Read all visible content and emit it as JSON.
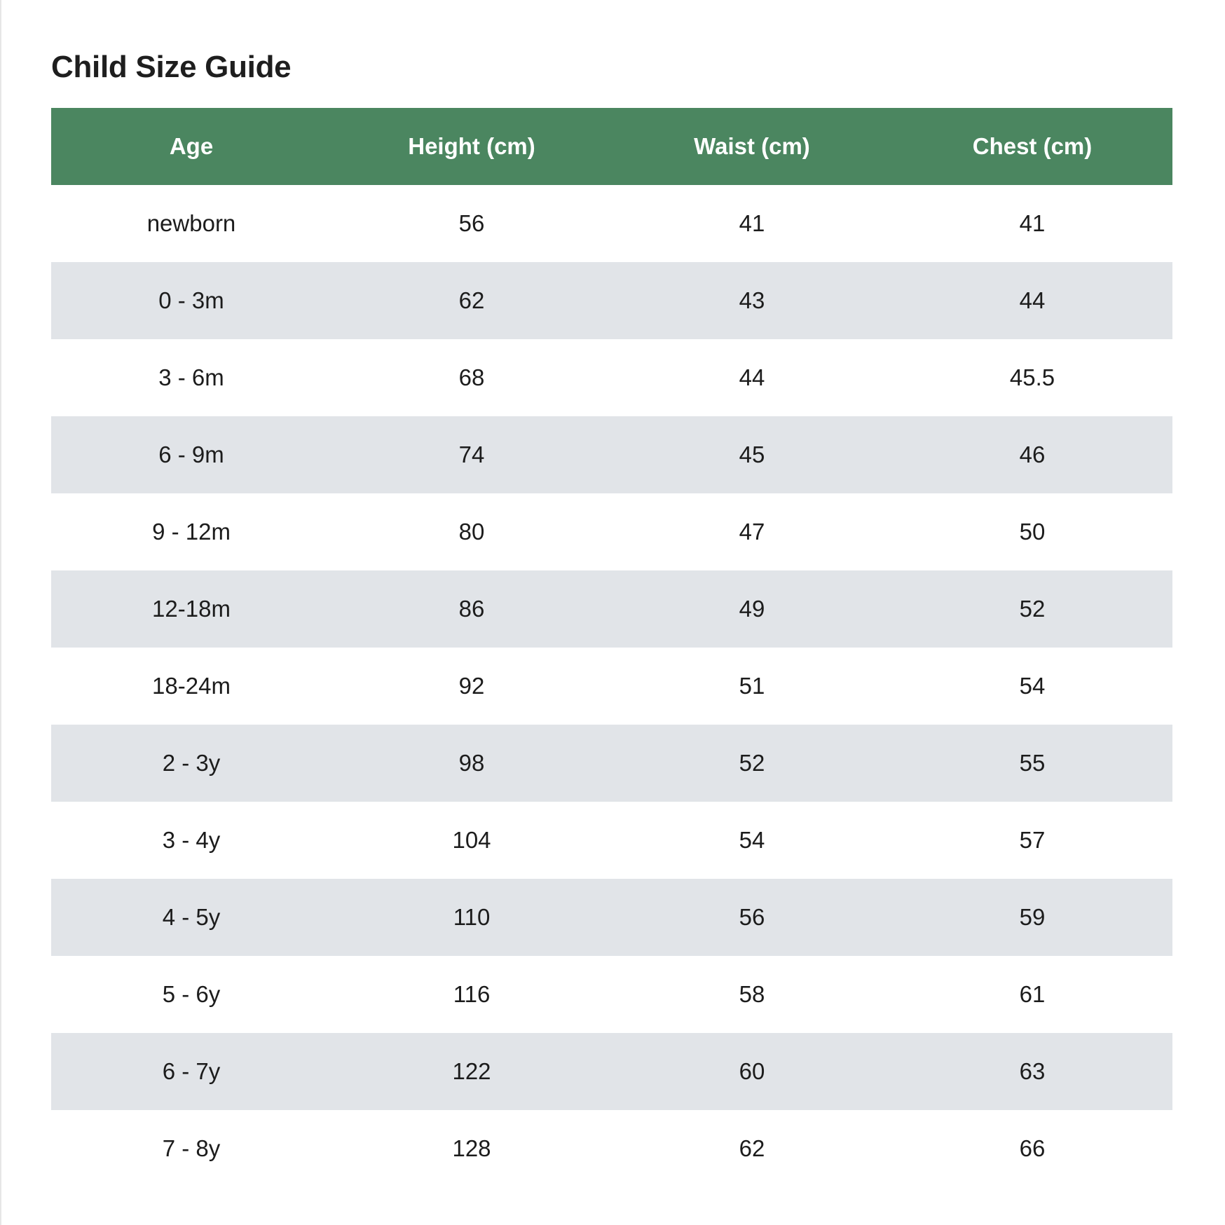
{
  "page": {
    "title": "Child Size Guide"
  },
  "colors": {
    "header_background": "#4b8660",
    "header_text": "#ffffff",
    "stripe_row": "#e1e4e8",
    "plain_row": "#ffffff"
  },
  "table": {
    "headers": [
      "Age",
      "Height (cm)",
      "Waist (cm)",
      "Chest (cm)"
    ],
    "rows": [
      [
        "newborn",
        "56",
        "41",
        "41"
      ],
      [
        "0 - 3m",
        "62",
        "43",
        "44"
      ],
      [
        "3 - 6m",
        "68",
        "44",
        "45.5"
      ],
      [
        "6 - 9m",
        "74",
        "45",
        "46"
      ],
      [
        "9 - 12m",
        "80",
        "47",
        "50"
      ],
      [
        "12-18m",
        "86",
        "49",
        "52"
      ],
      [
        "18-24m",
        "92",
        "51",
        "54"
      ],
      [
        "2 - 3y",
        "98",
        "52",
        "55"
      ],
      [
        "3 - 4y",
        "104",
        "54",
        "57"
      ],
      [
        "4 - 5y",
        "110",
        "56",
        "59"
      ],
      [
        "5 - 6y",
        "116",
        "58",
        "61"
      ],
      [
        "6 - 7y",
        "122",
        "60",
        "63"
      ],
      [
        "7 - 8y",
        "128",
        "62",
        "66"
      ]
    ]
  }
}
